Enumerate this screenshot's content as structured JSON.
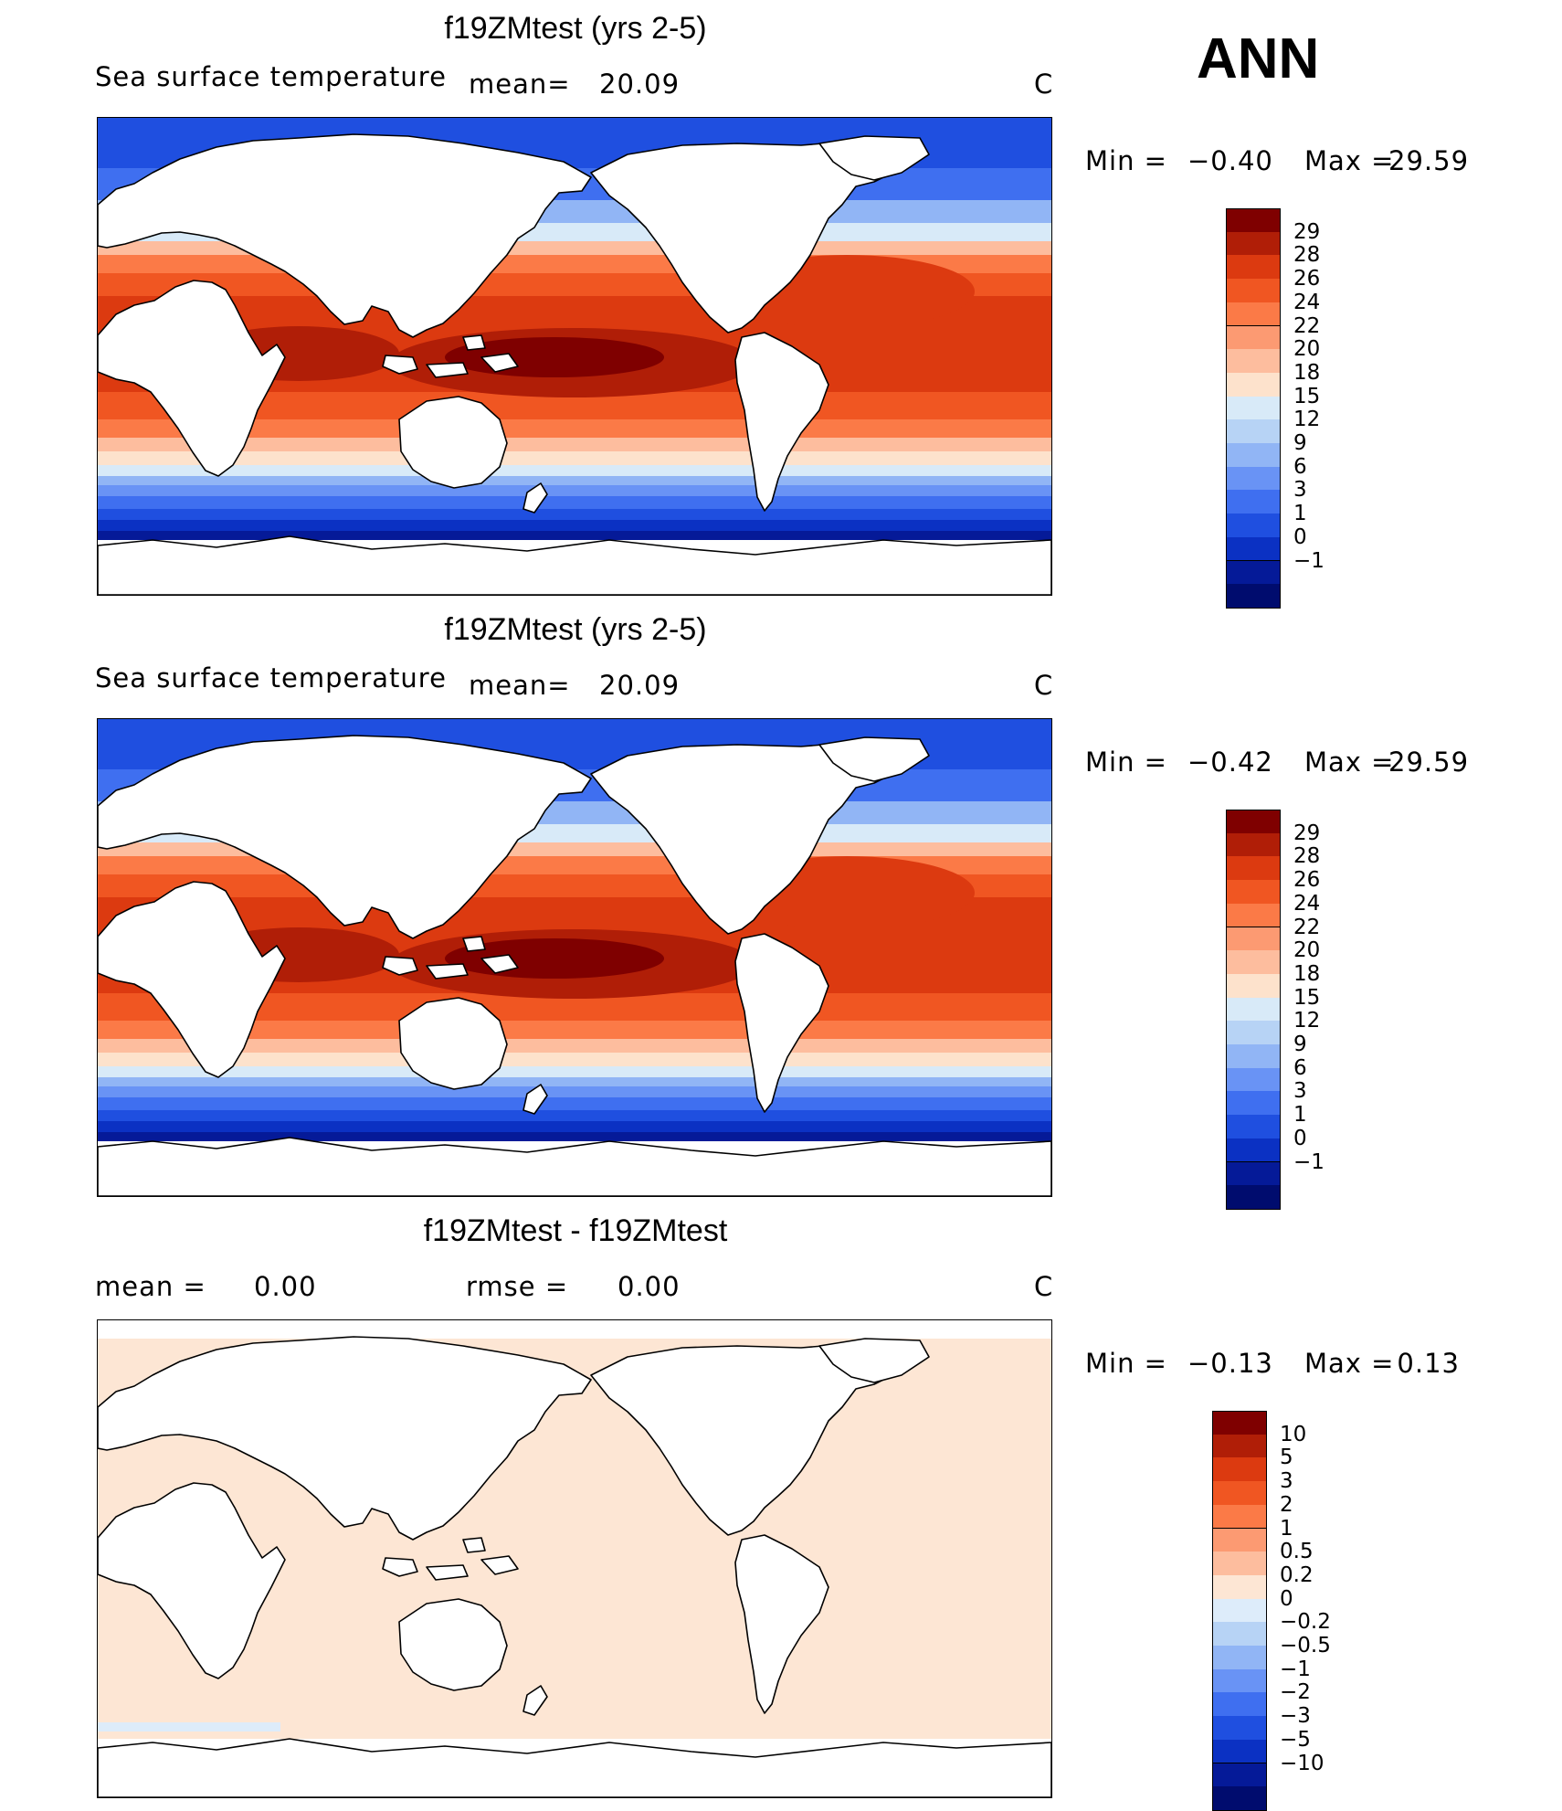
{
  "season": "ANN",
  "panels": [
    {
      "title": "f19ZMtest (yrs 2-5)",
      "variable": "Sea surface temperature",
      "stat1_label": "mean=",
      "stat1_value": "20.09",
      "stat2_label": "",
      "stat2_value": "",
      "units": "C",
      "min_label": "Min  =",
      "min_value": "−0.40",
      "max_label": "Max  =",
      "max_value": "29.59",
      "style": "sst",
      "colorbar": {
        "colors": [
          "#7f0000",
          "#b01e07",
          "#dc3a10",
          "#f05622",
          "#fb7a47",
          "#fc9a72",
          "#fdbd9e",
          "#fde2cc",
          "#d8eaf8",
          "#b7d3f5",
          "#91b5f5",
          "#6993f5",
          "#3f6ff0",
          "#1f4fe0",
          "#0b31c3",
          "#051a98",
          "#000c6e"
        ],
        "labels": [
          "29",
          "28",
          "26",
          "24",
          "22",
          "20",
          "18",
          "15",
          "12",
          "9",
          "6",
          "3",
          "1",
          "0",
          "−1"
        ]
      }
    },
    {
      "title": "f19ZMtest (yrs 2-5)",
      "variable": "Sea surface temperature",
      "stat1_label": "mean=",
      "stat1_value": "20.09",
      "stat2_label": "",
      "stat2_value": "",
      "units": "C",
      "min_label": "Min  =",
      "min_value": "−0.42",
      "max_label": "Max  =",
      "max_value": "29.59",
      "style": "sst",
      "colorbar": {
        "colors": [
          "#7f0000",
          "#b01e07",
          "#dc3a10",
          "#f05622",
          "#fb7a47",
          "#fc9a72",
          "#fdbd9e",
          "#fde2cc",
          "#d8eaf8",
          "#b7d3f5",
          "#91b5f5",
          "#6993f5",
          "#3f6ff0",
          "#1f4fe0",
          "#0b31c3",
          "#051a98",
          "#000c6e"
        ],
        "labels": [
          "29",
          "28",
          "26",
          "24",
          "22",
          "20",
          "18",
          "15",
          "12",
          "9",
          "6",
          "3",
          "1",
          "0",
          "−1"
        ]
      }
    },
    {
      "title": "f19ZMtest - f19ZMtest",
      "variable": "",
      "stat1_label": "mean  =",
      "stat1_value": "0.00",
      "stat2_label": "rmse  =",
      "stat2_value": "0.00",
      "units": "C",
      "min_label": "Min  =",
      "min_value": "−0.13",
      "max_label": "Max  =",
      "max_value": "0.13",
      "style": "diff",
      "colorbar": {
        "colors": [
          "#7f0000",
          "#b01e07",
          "#dc3a10",
          "#f05622",
          "#fb7a47",
          "#fc9a72",
          "#fdbd9e",
          "#fde6d4",
          "#ddecfa",
          "#b7d3f5",
          "#91b5f5",
          "#6993f5",
          "#3f6ff0",
          "#1f4fe0",
          "#0b31c3",
          "#051a98",
          "#000c6e"
        ],
        "labels": [
          "10",
          "5",
          "3",
          "2",
          "1",
          "0.5",
          "0.2",
          "0",
          "−0.2",
          "−0.5",
          "−1",
          "−2",
          "−3",
          "−5",
          "−10"
        ]
      }
    }
  ]
}
